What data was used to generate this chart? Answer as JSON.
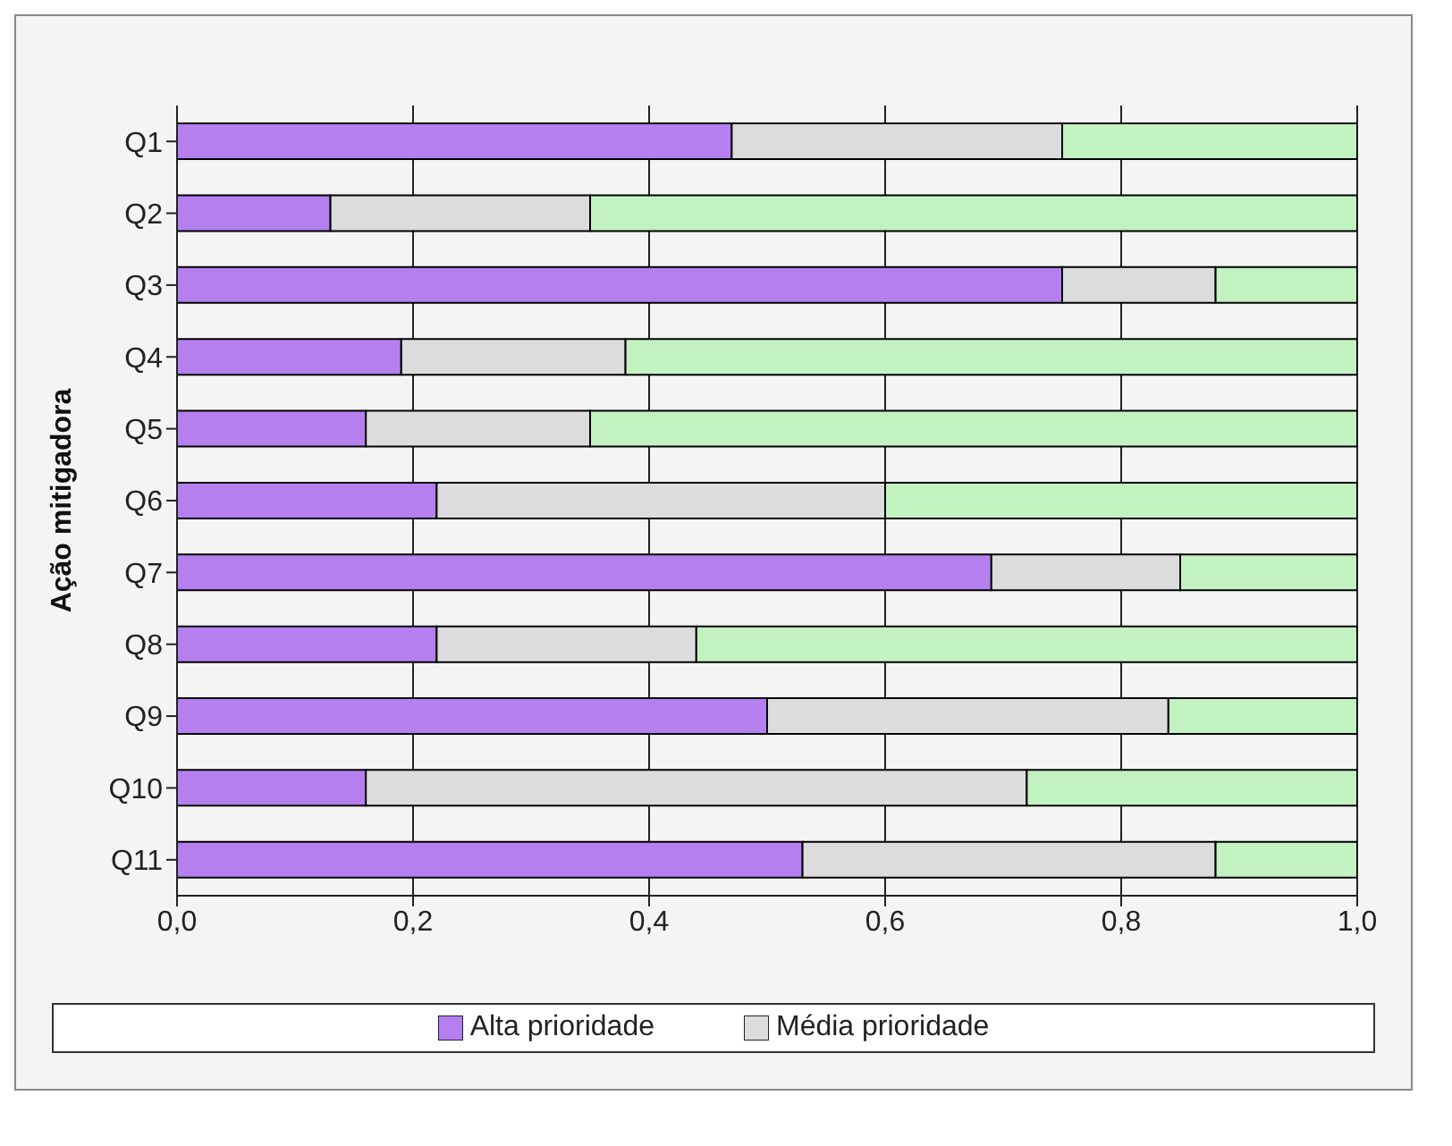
{
  "chart_data": {
    "type": "bar",
    "orientation": "horizontal",
    "stacked": true,
    "ylabel": "Ação mitigadora",
    "categories": [
      "Q1",
      "Q2",
      "Q3",
      "Q4",
      "Q5",
      "Q6",
      "Q7",
      "Q8",
      "Q9",
      "Q10",
      "Q11"
    ],
    "series": [
      {
        "name": "Alta prioridade",
        "color": "#b57ff0",
        "values": [
          0.47,
          0.13,
          0.75,
          0.19,
          0.16,
          0.22,
          0.69,
          0.22,
          0.5,
          0.16,
          0.53
        ]
      },
      {
        "name": "Média prioridade",
        "color": "#dcdcdc",
        "values": [
          0.28,
          0.22,
          0.13,
          0.19,
          0.19,
          0.38,
          0.16,
          0.22,
          0.34,
          0.56,
          0.35
        ]
      },
      {
        "color": "#c2f2c0",
        "values": [
          0.25,
          0.65,
          0.12,
          0.62,
          0.65,
          0.4,
          0.15,
          0.56,
          0.16,
          0.28,
          0.12
        ]
      }
    ],
    "xlim": [
      0,
      1
    ],
    "xticks": [
      {
        "value": 0,
        "label": "0,0"
      },
      {
        "value": 0.2,
        "label": "0,2"
      },
      {
        "value": 0.4,
        "label": "0,4"
      },
      {
        "value": 0.6,
        "label": "0,6"
      },
      {
        "value": 0.8,
        "label": "0,8"
      },
      {
        "value": 1,
        "label": "1,0"
      }
    ],
    "grid": "x",
    "legend": "bottom"
  }
}
